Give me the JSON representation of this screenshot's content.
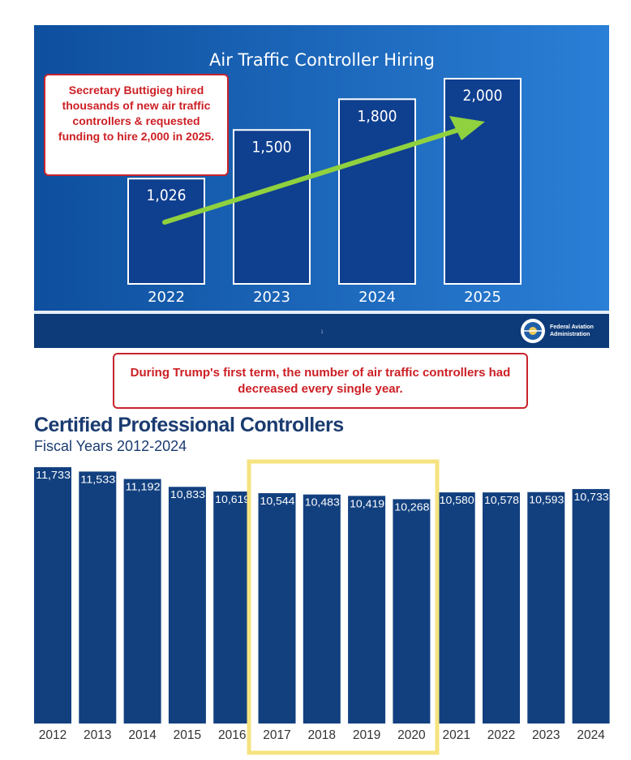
{
  "chart_data": [
    {
      "type": "bar",
      "title": "Air Traffic Controller Hiring",
      "categories": [
        "2022",
        "2023",
        "2024",
        "2025"
      ],
      "values": [
        1026,
        1500,
        1800,
        2000
      ],
      "value_labels": [
        "1,026",
        "1,500",
        "1,800",
        "2,000"
      ],
      "annotation": "Secretary Buttigieg hired thousands of new air traffic controllers & requested funding to hire 2,000 in 2025.",
      "footer_text": "Federal Aviation Administration",
      "page_number": "1",
      "colors": {
        "background": "#1f6fc2",
        "bar": "#0f3f8f",
        "bar_border": "#ffffff",
        "arrow": "#8fd13f",
        "footer": "#0d3a78"
      }
    },
    {
      "type": "bar",
      "title": "Certified Professional Controllers",
      "subtitle": "Fiscal Years 2012-2024",
      "categories": [
        "2012",
        "2013",
        "2014",
        "2015",
        "2016",
        "2017",
        "2018",
        "2019",
        "2020",
        "2021",
        "2022",
        "2023",
        "2024"
      ],
      "values": [
        11733,
        11533,
        11192,
        10833,
        10619,
        10544,
        10483,
        10419,
        10268,
        10580,
        10578,
        10593,
        10733
      ],
      "value_labels": [
        "11,733",
        "11,533",
        "11,192",
        "10,833",
        "10,619",
        "10,544",
        "10,483",
        "10,419",
        "10,268",
        "10,580",
        "10,578",
        "10,593",
        "10,733"
      ],
      "highlight_range": [
        "2017",
        "2020"
      ],
      "annotation": "During Trump's first term, the number of air traffic controllers had decreased every single year.",
      "colors": {
        "bar": "#12407f",
        "highlight": "#f6e37f",
        "title": "#1a3b70"
      }
    }
  ]
}
